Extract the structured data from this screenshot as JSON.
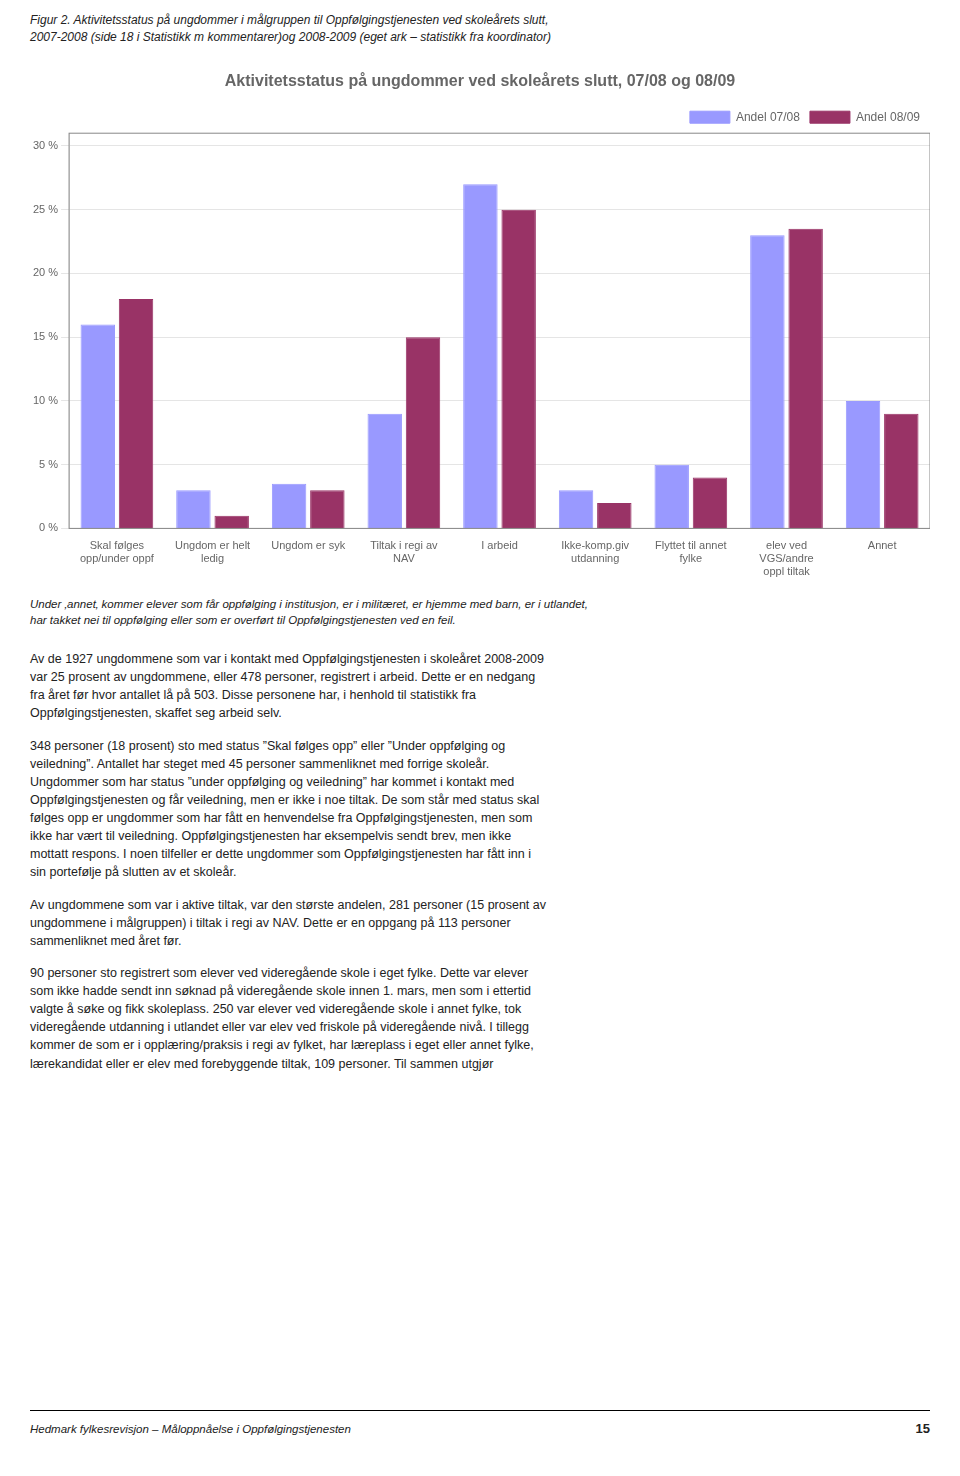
{
  "chart_data": {
    "type": "bar",
    "title": "Aktivitetsstatus på ungdommer ved skoleårets slutt, 07/08 og 08/09",
    "subtitle": "Figur 2. Aktivitetsstatus på ungdommer i målgruppen til Oppfølgingstjenesten ved skoleårets slutt,\n2007-2008 (side 18 i Statistikk m kommentarer)og 2008-2009 (eget ark – statistikk fra koordinator)",
    "categories": [
      "Skal følges\nopp/under oppf",
      "Ungdom er helt\nledig",
      "Ungdom er syk",
      "Tiltak i regi av\nNAV",
      "I arbeid",
      "Ikke-komp.giv\nutdanning",
      "Flyttet til annet\nfylke",
      "elev ved\nVGS/andre\noppl tiltak",
      "Annet"
    ],
    "series": [
      {
        "name": "Andel 07/08",
        "color": "#9999FF",
        "values": [
          16,
          3,
          3.5,
          9,
          27,
          3,
          5,
          23,
          10
        ]
      },
      {
        "name": "Andel 08/09",
        "color": "#993366",
        "values": [
          18,
          1,
          3,
          15,
          25,
          2,
          4,
          23.5,
          9
        ]
      }
    ],
    "ylim": [
      0,
      31
    ],
    "yticks": [
      {
        "value": 0,
        "label": "0 %"
      },
      {
        "value": 5,
        "label": "5 %"
      },
      {
        "value": 10,
        "label": "10 %"
      },
      {
        "value": 15,
        "label": "15 %"
      },
      {
        "value": 20,
        "label": "20 %"
      },
      {
        "value": 25,
        "label": "25 %"
      },
      {
        "value": 30,
        "label": "30 %"
      }
    ],
    "grid": true,
    "legend": "upper right",
    "annotations": [
      "Under ‚annet‚ kommer elever som får oppfølging i institusjon, er i militæret, er hjemme med barn, er i utlandet,\nhar takket nei til oppfølging eller som er overført til Oppfølgingstjenesten ved en feil.",
      "Av de 1927 ungdommene som var i kontakt med Oppfølgingstjenesten i skoleåret 2008-2009\nvar 25 prosent av ungdommene, eller 478 personer, registrert i arbeid. Dette er en nedgang\nfra året før hvor antallet lå på 503. Disse personene har, i henhold til statistikk fra\nOppfølgingstjenesten, skaffet seg arbeid selv.",
      "348 personer (18 prosent) sto med status ”Skal følges opp” eller ”Under oppfølging og\nveiledning”. Antallet har steget med 45 personer sammenliknet med forrige skoleår.\nUngdommer som har status ”under oppfølging og veiledning” har kommet i kontakt med\nOppfølgingstjenesten og får veiledning, men er ikke i noe tiltak. De som står med status skal\nfølges opp er ungdommer som har fått en henvendelse fra Oppfølgingstjenesten, men som\nikke har vært til veiledning. Oppfølgingstjenesten har eksempelvis sendt brev, men ikke\nmottatt respons. I noen tilfeller er dette ungdommer som Oppfølgingstjenesten har fått inn i\nsin portefølje på slutten av et skoleår.",
      "Av ungdommene som var i aktive tiltak, var den største andelen, 281 personer (15 prosent av\nungdommene i målgruppen) i tiltak i regi av NAV. Dette er en oppgang på 113 personer\nsammenliknet med året før.",
      "90 personer sto registrert som elever ved videregående skole i eget fylke. Dette var elever\nsom ikke hadde sendt inn søknad på videregående skole innen 1. mars, men som i ettertid\nvalgte å søke og fikk skoleplass. 250 var elever ved videregående skole i annet fylke, tok\nvideregående utdanning i utlandet eller var elev ved friskole på videregående nivå. I tillegg\nkommer de som er i opplæring/praksis i regi av fylket, har læreplass i eget eller annet fylke,\nlærekandidat eller er elev med forebyggende tiltak, 109 personer. Til sammen utgjør",
      "Hedmark fylkesrevisjon – Måloppnåelse i Oppfølgingstjenesten",
      "15"
    ]
  }
}
